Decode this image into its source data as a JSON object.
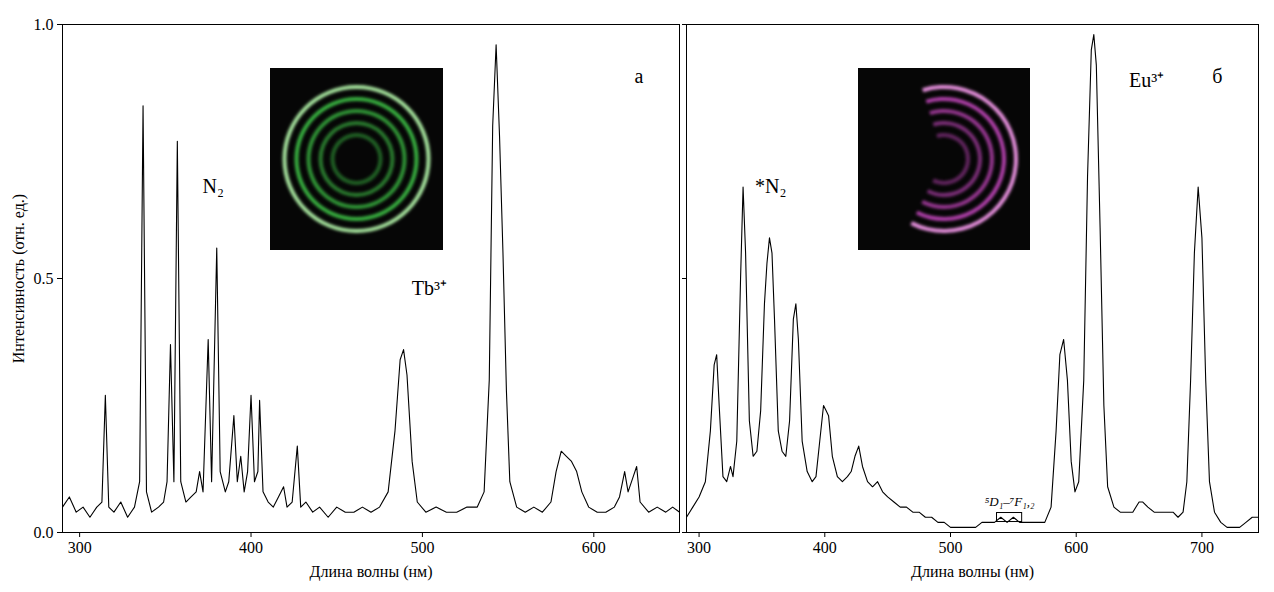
{
  "chart_data": [
    {
      "type": "line",
      "title": "а",
      "xlabel": "Длина волны (нм)",
      "ylabel": "Интенсивность (отн. ед.)",
      "color": "#000000",
      "line_style": "solid",
      "xlim": [
        290,
        650
      ],
      "ylim": [
        0,
        1
      ],
      "xticks": [
        300,
        400,
        500,
        600
      ],
      "yticks": [
        {
          "value": 0,
          "label": "0.0"
        },
        {
          "value": 0.5,
          "label": "0.5"
        },
        {
          "value": 1,
          "label": "1.0"
        }
      ],
      "x": [
        290,
        294,
        298,
        302,
        306,
        310,
        313,
        315,
        317,
        320,
        324,
        328,
        332,
        335,
        337,
        339,
        342,
        346,
        349,
        351,
        353,
        355,
        357,
        359,
        362,
        365,
        368,
        370,
        372,
        375,
        377,
        380,
        382,
        385,
        387,
        390,
        392,
        394,
        396,
        398,
        400,
        402,
        404,
        405,
        407,
        410,
        413,
        416,
        419,
        421,
        424,
        427,
        429,
        432,
        436,
        440,
        445,
        450,
        455,
        460,
        465,
        470,
        475,
        480,
        484,
        487,
        489,
        491,
        494,
        497,
        502,
        508,
        514,
        520,
        526,
        532,
        536,
        539,
        541,
        543,
        545,
        547,
        549,
        551,
        555,
        560,
        565,
        570,
        575,
        578,
        581,
        584,
        587,
        590,
        593,
        597,
        602,
        607,
        612,
        615,
        618,
        620,
        623,
        625,
        627,
        632,
        637,
        642,
        646,
        650
      ],
      "values": [
        0.05,
        0.07,
        0.04,
        0.05,
        0.03,
        0.05,
        0.06,
        0.27,
        0.05,
        0.04,
        0.06,
        0.03,
        0.05,
        0.1,
        0.84,
        0.08,
        0.04,
        0.05,
        0.06,
        0.1,
        0.37,
        0.1,
        0.77,
        0.1,
        0.06,
        0.07,
        0.08,
        0.12,
        0.08,
        0.38,
        0.1,
        0.56,
        0.12,
        0.08,
        0.1,
        0.23,
        0.1,
        0.15,
        0.08,
        0.12,
        0.27,
        0.1,
        0.12,
        0.26,
        0.08,
        0.06,
        0.05,
        0.07,
        0.09,
        0.05,
        0.06,
        0.17,
        0.05,
        0.06,
        0.04,
        0.05,
        0.03,
        0.05,
        0.04,
        0.04,
        0.05,
        0.04,
        0.05,
        0.08,
        0.2,
        0.34,
        0.36,
        0.31,
        0.14,
        0.06,
        0.04,
        0.05,
        0.04,
        0.04,
        0.05,
        0.05,
        0.08,
        0.3,
        0.8,
        0.96,
        0.78,
        0.55,
        0.28,
        0.1,
        0.05,
        0.04,
        0.05,
        0.04,
        0.06,
        0.12,
        0.16,
        0.15,
        0.14,
        0.12,
        0.08,
        0.05,
        0.04,
        0.04,
        0.05,
        0.07,
        0.12,
        0.08,
        0.11,
        0.13,
        0.06,
        0.04,
        0.05,
        0.04,
        0.05,
        0.04
      ],
      "annotations": [
        {
          "text": "N₂",
          "x": 378,
          "y": 0.68
        },
        {
          "text": "Tb³⁺",
          "x": 504,
          "y": 0.48
        }
      ]
    },
    {
      "type": "line",
      "title": "б",
      "xlabel": "Длина волны (нм)",
      "color": "#000000",
      "line_style": "solid",
      "tick_labels": "x",
      "xlim": [
        290,
        745
      ],
      "ylim": [
        0,
        1
      ],
      "xticks": [
        300,
        400,
        500,
        600,
        700
      ],
      "yticks": [
        0,
        0.5,
        1
      ],
      "x": [
        290,
        295,
        300,
        305,
        309,
        312,
        314,
        316,
        319,
        322,
        325,
        327,
        330,
        333,
        335,
        337,
        340,
        343,
        346,
        349,
        352,
        354,
        356,
        358,
        360,
        363,
        366,
        369,
        372,
        375,
        377,
        379,
        382,
        386,
        390,
        393,
        396,
        399,
        401,
        403,
        406,
        410,
        414,
        418,
        421,
        424,
        427,
        430,
        434,
        438,
        442,
        446,
        450,
        455,
        460,
        465,
        470,
        475,
        480,
        485,
        490,
        495,
        500,
        505,
        510,
        515,
        520,
        525,
        530,
        535,
        540,
        545,
        550,
        555,
        560,
        565,
        570,
        575,
        580,
        584,
        587,
        590,
        593,
        596,
        599,
        602,
        606,
        609,
        612,
        614,
        616,
        619,
        622,
        625,
        630,
        635,
        640,
        645,
        650,
        653,
        657,
        662,
        667,
        672,
        677,
        681,
        685,
        688,
        691,
        694,
        697,
        700,
        703,
        706,
        710,
        715,
        720,
        725,
        730,
        735,
        740,
        745
      ],
      "values": [
        0.03,
        0.05,
        0.07,
        0.1,
        0.2,
        0.33,
        0.35,
        0.25,
        0.11,
        0.1,
        0.13,
        0.11,
        0.18,
        0.5,
        0.68,
        0.55,
        0.22,
        0.15,
        0.16,
        0.24,
        0.45,
        0.53,
        0.58,
        0.55,
        0.42,
        0.2,
        0.16,
        0.15,
        0.22,
        0.42,
        0.45,
        0.38,
        0.18,
        0.12,
        0.1,
        0.11,
        0.18,
        0.25,
        0.24,
        0.23,
        0.15,
        0.11,
        0.1,
        0.11,
        0.12,
        0.15,
        0.17,
        0.13,
        0.1,
        0.09,
        0.1,
        0.08,
        0.07,
        0.06,
        0.05,
        0.05,
        0.04,
        0.04,
        0.03,
        0.03,
        0.02,
        0.02,
        0.01,
        0.01,
        0.01,
        0.01,
        0.01,
        0.02,
        0.02,
        0.02,
        0.03,
        0.02,
        0.03,
        0.02,
        0.02,
        0.02,
        0.02,
        0.02,
        0.05,
        0.2,
        0.35,
        0.38,
        0.3,
        0.14,
        0.08,
        0.1,
        0.3,
        0.7,
        0.95,
        0.98,
        0.92,
        0.6,
        0.25,
        0.09,
        0.05,
        0.04,
        0.04,
        0.04,
        0.06,
        0.06,
        0.05,
        0.04,
        0.04,
        0.04,
        0.04,
        0.03,
        0.04,
        0.1,
        0.3,
        0.55,
        0.68,
        0.58,
        0.3,
        0.1,
        0.04,
        0.02,
        0.01,
        0.01,
        0.01,
        0.02,
        0.03,
        0.03
      ],
      "annotations": [
        {
          "text": "*N₂",
          "x": 357,
          "y": 0.68
        },
        {
          "text": "Eu³⁺",
          "x": 656,
          "y": 0.89
        },
        {
          "text": "⁵D₁–⁷F₁,₂",
          "x": 547,
          "y": 0.06,
          "x_range": [
            537,
            557
          ]
        }
      ]
    }
  ]
}
